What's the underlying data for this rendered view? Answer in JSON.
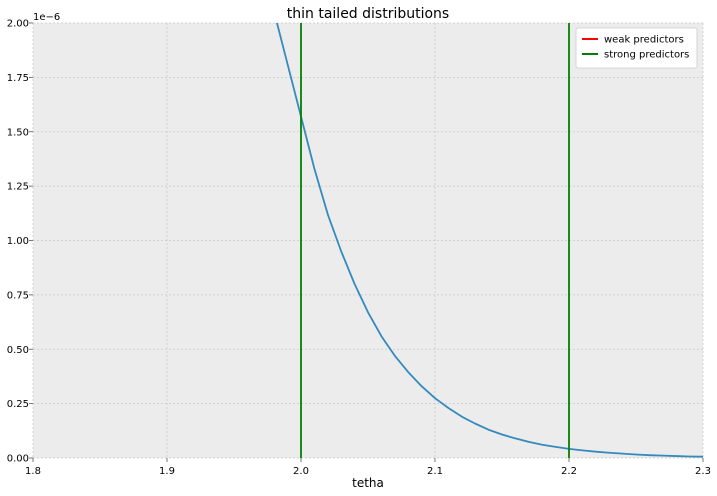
{
  "chart_data": {
    "type": "line",
    "title": "thin tailed distributions",
    "xlabel": "tetha",
    "ylabel": "",
    "y_scale_note": "1e−6",
    "xlim": [
      1.8,
      2.3
    ],
    "ylim": [
      0,
      2.0
    ],
    "xticks": [
      1.8,
      1.9,
      2.0,
      2.1,
      2.2,
      2.3
    ],
    "xtick_labels": [
      "1.8",
      "1.9",
      "2.0",
      "2.1",
      "2.2",
      "2.3"
    ],
    "yticks": [
      0,
      0.25,
      0.5,
      0.75,
      1.0,
      1.25,
      1.5,
      1.75,
      2.0
    ],
    "ytick_labels": [
      "0.00",
      "0.25",
      "0.50",
      "0.75",
      "1.00",
      "1.25",
      "1.50",
      "1.75",
      "2.00"
    ],
    "grid": true,
    "legend_position": "top-right",
    "legend": [
      {
        "label": "weak predictors",
        "color": "#ff0000"
      },
      {
        "label": "strong predictors",
        "color": "#008000"
      }
    ],
    "series": [
      {
        "color": "#348abd",
        "x": [
          1.98,
          1.99,
          2.0,
          2.01,
          2.02,
          2.03,
          2.04,
          2.05,
          2.06,
          2.07,
          2.08,
          2.09,
          2.1,
          2.11,
          2.12,
          2.13,
          2.14,
          2.15,
          2.16,
          2.17,
          2.18,
          2.19,
          2.2,
          2.21,
          2.22,
          2.23,
          2.24,
          2.25,
          2.26,
          2.27,
          2.28,
          2.29,
          2.3
        ],
        "y": [
          2.05,
          1.81,
          1.57,
          1.33,
          1.12,
          0.95,
          0.8,
          0.67,
          0.56,
          0.47,
          0.395,
          0.33,
          0.275,
          0.23,
          0.19,
          0.158,
          0.13,
          0.108,
          0.09,
          0.074,
          0.061,
          0.051,
          0.042,
          0.035,
          0.029,
          0.024,
          0.02,
          0.016,
          0.013,
          0.011,
          0.009,
          0.007,
          0.006
        ]
      }
    ],
    "vlines": [
      {
        "x": 2.0,
        "color": "#008000"
      },
      {
        "x": 2.2,
        "color": "#008000"
      }
    ]
  }
}
